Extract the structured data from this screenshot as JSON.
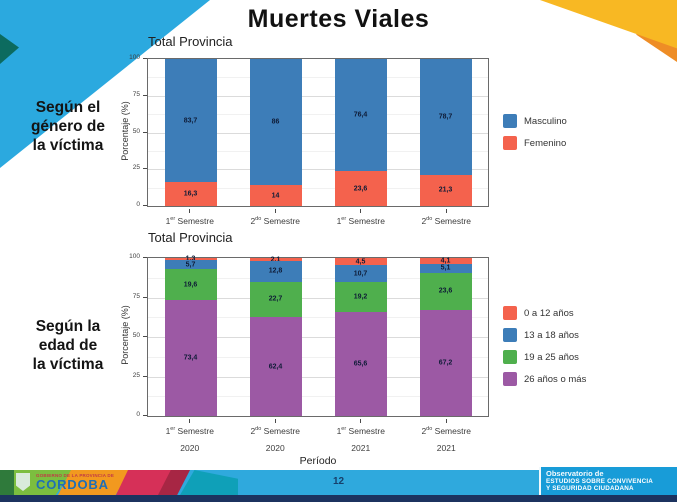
{
  "slide": {
    "title": "Muertes Viales"
  },
  "row_labels": {
    "gender": [
      "Según el",
      "género de",
      "la víctima"
    ],
    "age": [
      "Según la",
      "edad de",
      "la víctima"
    ]
  },
  "chart_data": [
    {
      "type": "bar",
      "stacked": true,
      "title": "Total Provincia",
      "xlabel": "",
      "ylabel": "Porcentaje (%)",
      "ylim": [
        0,
        100
      ],
      "yticks": [
        0,
        25,
        50,
        75,
        100
      ],
      "grid": true,
      "legend_position": "right",
      "categories": [
        "1er Semestre",
        "2do Semestre",
        "1er Semestre",
        "2do Semestre"
      ],
      "years": [],
      "series": [
        {
          "name": "Masculino",
          "color": "#3D7DB8",
          "values": [
            83.7,
            86,
            76.4,
            78.7
          ],
          "labels": [
            "83,7",
            "86",
            "76,4",
            "78,7"
          ]
        },
        {
          "name": "Femenino",
          "color": "#F4624D",
          "values": [
            16.3,
            14,
            23.6,
            21.3
          ],
          "labels": [
            "16,3",
            "14",
            "23,6",
            "21,3"
          ]
        }
      ]
    },
    {
      "type": "bar",
      "stacked": true,
      "title": "Total Provincia",
      "xlabel": "Período",
      "ylabel": "Porcentaje (%)",
      "ylim": [
        0,
        100
      ],
      "yticks": [
        0,
        25,
        50,
        75,
        100
      ],
      "grid": true,
      "legend_position": "right",
      "categories": [
        "1er Semestre",
        "2do Semestre",
        "1er Semestre",
        "2do Semestre"
      ],
      "years": [
        "2020",
        "2020",
        "2021",
        "2021"
      ],
      "series": [
        {
          "name": "0 a 12 años",
          "color": "#F4624D",
          "values": [
            1.3,
            2.1,
            4.5,
            4.1
          ],
          "labels": [
            "1,3",
            "2,1",
            "4,5",
            "4,1"
          ]
        },
        {
          "name": "13 a 18 años",
          "color": "#3D7DB8",
          "values": [
            5.7,
            12.8,
            10.7,
            5.1
          ],
          "labels": [
            "5,7",
            "12,8",
            "10,7",
            "5,1"
          ]
        },
        {
          "name": "19 a 25 años",
          "color": "#4FAF4D",
          "values": [
            19.6,
            22.7,
            19.2,
            23.6
          ],
          "labels": [
            "19,6",
            "22,7",
            "19,2",
            "23,6"
          ]
        },
        {
          "name": "26 años o más",
          "color": "#9C59A4",
          "values": [
            73.4,
            62.4,
            65.6,
            67.2
          ],
          "labels": [
            "73,4",
            "62,4",
            "65,6",
            "67,2"
          ]
        }
      ]
    }
  ],
  "footer": {
    "page_number": "12",
    "logo": {
      "small_text": "GOBIERNO DE LA PROVINCIA DE",
      "name": "CORDOBA"
    },
    "observatory": {
      "line1": "Observatorio de",
      "line2": "ESTUDIOS SOBRE CONVIVENCIA",
      "line3": "Y SEGURIDAD CIUDADANA"
    }
  }
}
